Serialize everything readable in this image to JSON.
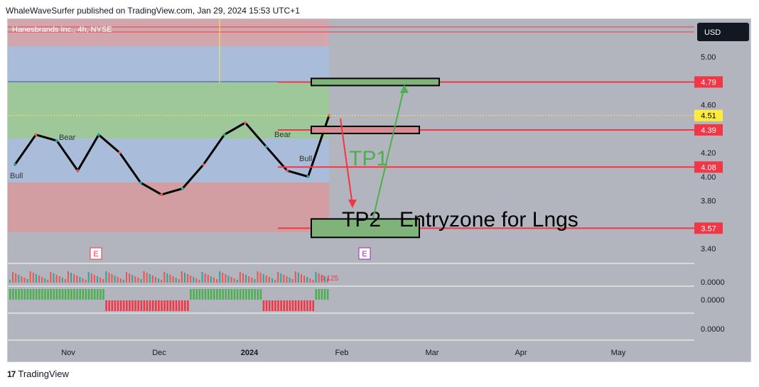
{
  "header": {
    "published_line": "WhaleWaveSurfer published on TradingView.com, Jan 29, 2024 15:53 UTC+1"
  },
  "footer": {
    "brand": "TradingView",
    "logo_glyph": "17"
  },
  "chart_data": {
    "type": "line",
    "title": "Hanesbrands Inc., 4h, NYSE",
    "currency": "USD",
    "ylim": [
      3.3,
      5.2
    ],
    "y_ticks": [
      "5.00",
      "4.60",
      "4.20",
      "4.00",
      "3.80",
      "3.40"
    ],
    "x_ticks": [
      "Nov",
      "Dec",
      "2024",
      "Feb",
      "Mar",
      "Apr",
      "May"
    ],
    "x": [
      "Oct 16",
      "Oct 23",
      "Oct 30",
      "Nov 6",
      "Nov 13",
      "Nov 20",
      "Nov 27",
      "Dec 4",
      "Dec 11",
      "Dec 18",
      "Dec 25",
      "Jan 1",
      "Jan 8",
      "Jan 15",
      "Jan 22",
      "Jan 29"
    ],
    "series": [
      {
        "values": [
          4.1,
          4.35,
          4.3,
          4.05,
          4.35,
          4.2,
          3.95,
          3.85,
          3.9,
          4.1,
          4.35,
          4.45,
          4.25,
          4.05,
          4.0,
          4.51
        ]
      }
    ],
    "price_levels": [
      {
        "label": "4.79",
        "value": 4.79,
        "color": "#f23645"
      },
      {
        "label": "4.51",
        "value": 4.51,
        "color": "#ffeb3b"
      },
      {
        "label": "4.39",
        "value": 4.39,
        "color": "#f23645"
      },
      {
        "label": "4.08",
        "value": 4.08,
        "color": "#f23645"
      },
      {
        "label": "3.57",
        "value": 3.57,
        "color": "#f23645"
      }
    ],
    "annotations": {
      "tp1": "TP1",
      "tp2": "TP2",
      "entry": "Entryzone for Lngs",
      "bear": "Bear",
      "bull": "Bull",
      "earnings": "E",
      "volume_label": "0.125"
    },
    "indicators": [
      {
        "value": "0.0000"
      },
      {
        "value": "0.0000"
      },
      {
        "value": "0.0000"
      }
    ],
    "colors": {
      "up": "#26a69a",
      "down": "#ef5350",
      "tp1": "#4caf50",
      "level": "#f23645"
    }
  }
}
